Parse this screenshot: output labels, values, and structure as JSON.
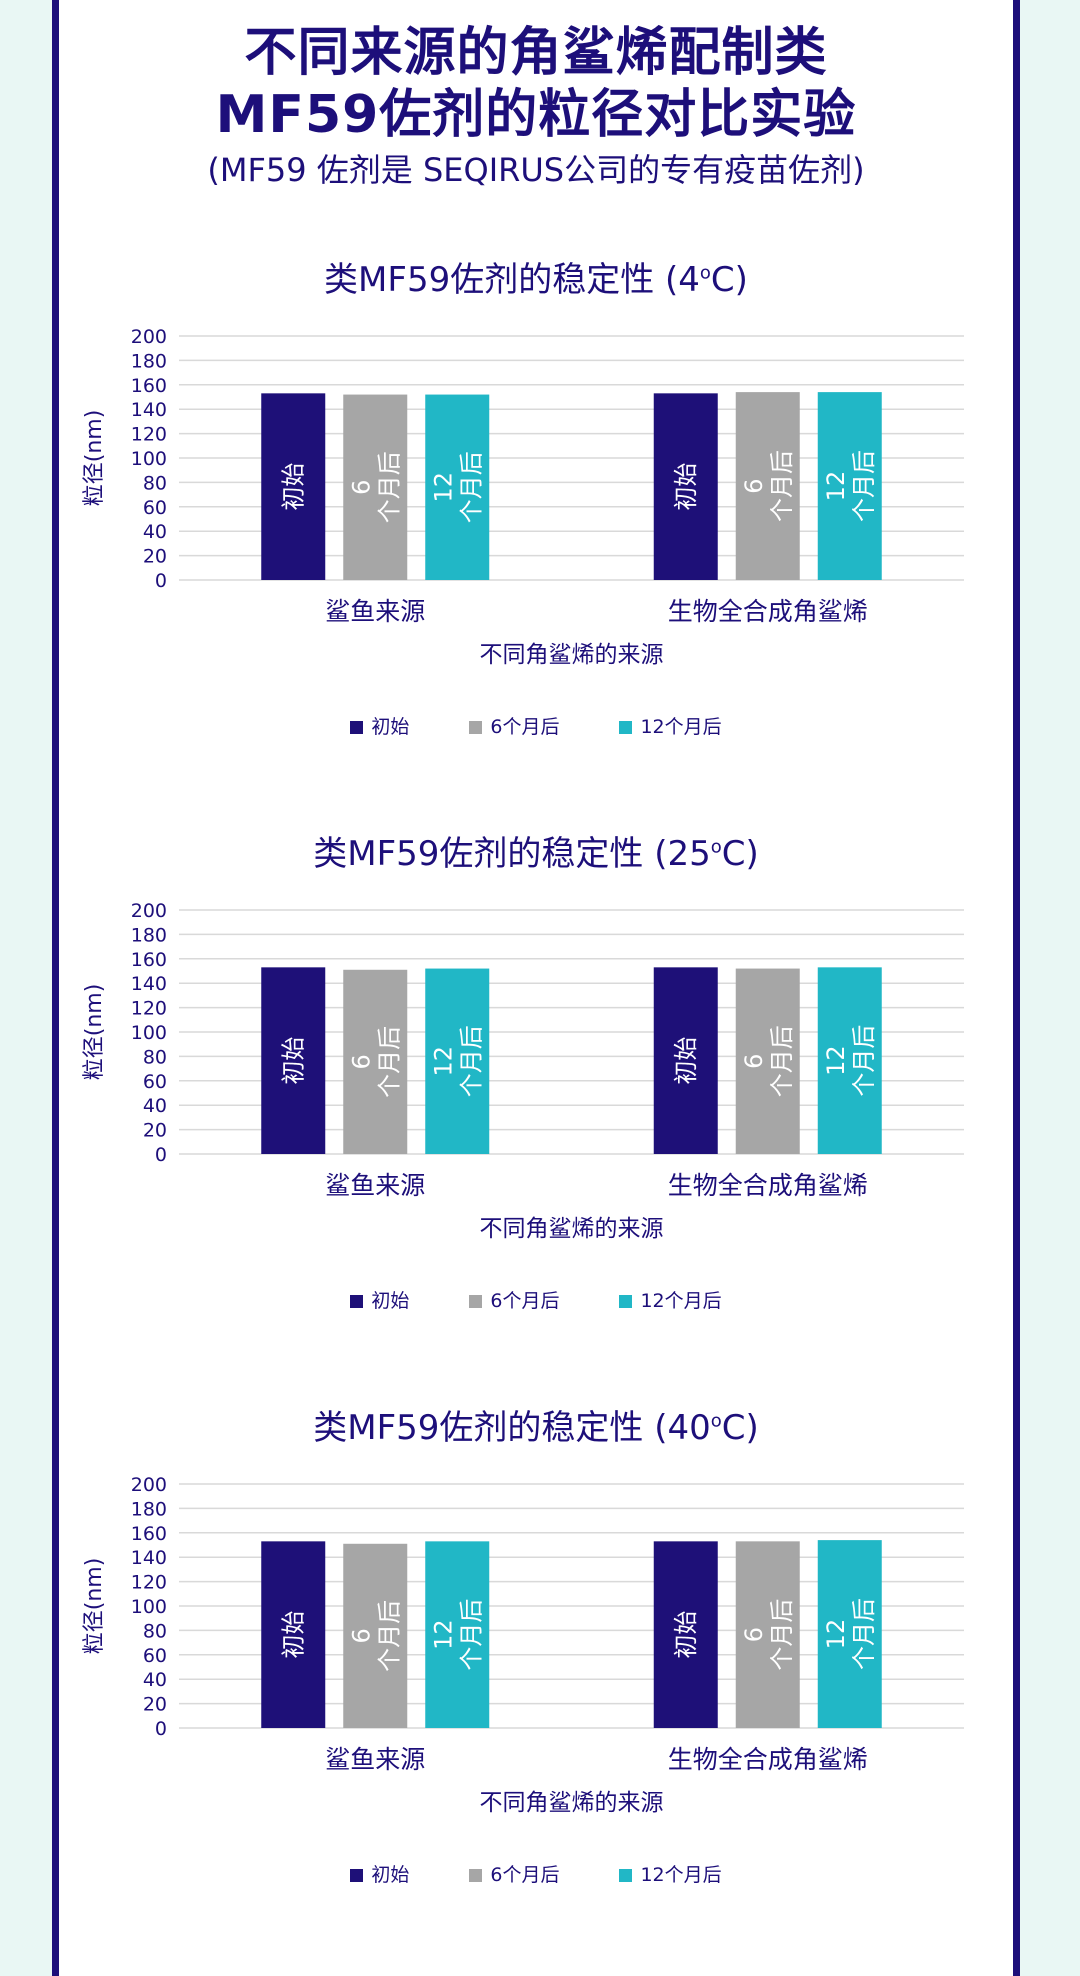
{
  "header": {
    "title_line1": "不同来源的角鲨烯配制类",
    "title_line2": "MF59佐剂的粒径对比实验",
    "subtitle": "(MF59 佐剂是 SEQIRUS公司的专有疫苗佐剂)"
  },
  "colors": {
    "initial": "#1e1078",
    "six_months": "#a6a6a6",
    "twelve_months": "#21b7c6",
    "text": "#1d0f7a"
  },
  "legend": [
    "初始",
    "6个月后",
    "12个月后"
  ],
  "chart_data": [
    {
      "type": "bar",
      "title_prefix": "类MF59佐剂的稳定性 (4",
      "title_sup": "o",
      "title_suffix": "C)",
      "categories": [
        "鲨鱼来源",
        "生物全合成角鲨烯"
      ],
      "xlabel": "不同角鲨烯的来源",
      "ylabel": "粒径(nm)",
      "ylim": [
        0,
        200
      ],
      "yticks": [
        0,
        20,
        40,
        60,
        80,
        100,
        120,
        140,
        160,
        180,
        200
      ],
      "series": [
        {
          "name": "初始",
          "bar_label": [
            "初始"
          ],
          "values": [
            153,
            153
          ]
        },
        {
          "name": "6个月后",
          "bar_label": [
            "6",
            "个月后"
          ],
          "values": [
            152,
            154
          ]
        },
        {
          "name": "12个月后",
          "bar_label": [
            "12",
            "个月后"
          ],
          "values": [
            152,
            154
          ]
        }
      ],
      "grid": true,
      "legend_position": "bottom"
    },
    {
      "type": "bar",
      "title_prefix": "类MF59佐剂的稳定性 (25",
      "title_sup": "o",
      "title_suffix": "C)",
      "categories": [
        "鲨鱼来源",
        "生物全合成角鲨烯"
      ],
      "xlabel": "不同角鲨烯的来源",
      "ylabel": "粒径(nm)",
      "ylim": [
        0,
        200
      ],
      "yticks": [
        0,
        20,
        40,
        60,
        80,
        100,
        120,
        140,
        160,
        180,
        200
      ],
      "series": [
        {
          "name": "初始",
          "bar_label": [
            "初始"
          ],
          "values": [
            153,
            153
          ]
        },
        {
          "name": "6个月后",
          "bar_label": [
            "6",
            "个月后"
          ],
          "values": [
            151,
            152
          ]
        },
        {
          "name": "12个月后",
          "bar_label": [
            "12",
            "个月后"
          ],
          "values": [
            152,
            153
          ]
        }
      ],
      "grid": true,
      "legend_position": "bottom"
    },
    {
      "type": "bar",
      "title_prefix": "类MF59佐剂的稳定性 (40",
      "title_sup": "o",
      "title_suffix": "C)",
      "categories": [
        "鲨鱼来源",
        "生物全合成角鲨烯"
      ],
      "xlabel": "不同角鲨烯的来源",
      "ylabel": "粒径(nm)",
      "ylim": [
        0,
        200
      ],
      "yticks": [
        0,
        20,
        40,
        60,
        80,
        100,
        120,
        140,
        160,
        180,
        200
      ],
      "series": [
        {
          "name": "初始",
          "bar_label": [
            "初始"
          ],
          "values": [
            153,
            153
          ]
        },
        {
          "name": "6个月后",
          "bar_label": [
            "6",
            "个月后"
          ],
          "values": [
            151,
            153
          ]
        },
        {
          "name": "12个月后",
          "bar_label": [
            "12",
            "个月后"
          ],
          "values": [
            153,
            154
          ]
        }
      ],
      "grid": true,
      "legend_position": "bottom"
    }
  ]
}
